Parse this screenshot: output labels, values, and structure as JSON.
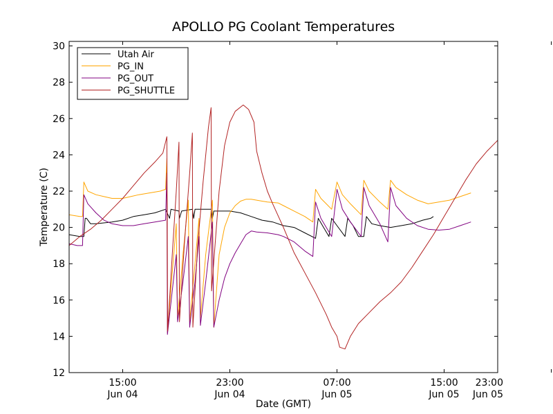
{
  "chart_data": {
    "type": "line",
    "title": "APOLLO PG Coolant Temperatures",
    "xlabel": "Date (GMT)",
    "ylabel": "Temperature (C)",
    "xlim_hours": [
      8.0,
      24.0
    ],
    "ylim": [
      12,
      30.25
    ],
    "grid": false,
    "legend_position": "upper-left",
    "y_ticks": [
      12,
      14,
      16,
      18,
      20,
      22,
      24,
      26,
      28,
      30
    ],
    "x_ticks": [
      {
        "hours": 10.0,
        "time": "15:00",
        "date": "Jun 04"
      },
      {
        "hours": 14.0,
        "time": "23:00",
        "date": "Jun 04"
      },
      {
        "hours": 18.0,
        "time": "07:00",
        "date": "Jun 05"
      },
      {
        "hours": 22.0,
        "time": "15:00",
        "date": "Jun 05"
      },
      {
        "hours": 26.0,
        "time": "23:00",
        "date": "Jun 05"
      }
    ],
    "series": [
      {
        "name": "Utah Air",
        "color": "#000000",
        "points": [
          [
            8.0,
            19.6
          ],
          [
            8.4,
            19.5
          ],
          [
            8.55,
            19.5
          ],
          [
            8.6,
            20.5
          ],
          [
            8.65,
            20.5
          ],
          [
            8.8,
            20.2
          ],
          [
            9.0,
            20.2
          ],
          [
            9.6,
            20.3
          ],
          [
            10.0,
            20.4
          ],
          [
            10.4,
            20.6
          ],
          [
            10.8,
            20.7
          ],
          [
            11.2,
            20.8
          ],
          [
            11.6,
            21.0
          ],
          [
            11.75,
            20.5
          ],
          [
            11.8,
            21.0
          ],
          [
            12.1,
            20.9
          ],
          [
            12.12,
            20.5
          ],
          [
            12.2,
            20.9
          ],
          [
            12.6,
            21.0
          ],
          [
            12.65,
            20.5
          ],
          [
            12.7,
            21.0
          ],
          [
            13.0,
            21.0
          ],
          [
            13.3,
            21.0
          ],
          [
            13.35,
            20.5
          ],
          [
            13.4,
            20.9
          ],
          [
            13.7,
            20.9
          ],
          [
            14.0,
            20.9
          ],
          [
            14.4,
            20.8
          ],
          [
            14.8,
            20.6
          ],
          [
            15.2,
            20.4
          ],
          [
            15.6,
            20.3
          ],
          [
            16.0,
            20.1
          ],
          [
            16.4,
            20.0
          ],
          [
            16.8,
            19.7
          ],
          [
            17.2,
            19.4
          ],
          [
            17.3,
            20.5
          ],
          [
            17.5,
            20.0
          ],
          [
            17.7,
            19.5
          ],
          [
            17.8,
            20.5
          ],
          [
            18.0,
            20.1
          ],
          [
            18.3,
            19.5
          ],
          [
            18.4,
            20.5
          ],
          [
            18.6,
            20.1
          ],
          [
            18.8,
            19.5
          ],
          [
            19.0,
            19.5
          ],
          [
            19.1,
            20.6
          ],
          [
            19.3,
            20.2
          ],
          [
            19.6,
            20.1
          ],
          [
            20.0,
            20.0
          ],
          [
            20.4,
            20.1
          ],
          [
            20.8,
            20.2
          ],
          [
            21.2,
            20.4
          ],
          [
            21.5,
            20.5
          ],
          [
            21.6,
            20.6
          ]
        ]
      },
      {
        "name": "PG_IN",
        "color": "#ffa500",
        "points": [
          [
            8.0,
            20.7
          ],
          [
            8.4,
            20.6
          ],
          [
            8.5,
            20.6
          ],
          [
            8.55,
            22.5
          ],
          [
            8.7,
            22.0
          ],
          [
            9.0,
            21.8
          ],
          [
            9.3,
            21.7
          ],
          [
            9.6,
            21.6
          ],
          [
            10.0,
            21.6
          ],
          [
            10.3,
            21.7
          ],
          [
            10.6,
            21.8
          ],
          [
            11.0,
            21.9
          ],
          [
            11.4,
            22.0
          ],
          [
            11.6,
            22.1
          ],
          [
            11.65,
            23.8
          ],
          [
            11.67,
            14.2
          ],
          [
            11.85,
            17.5
          ],
          [
            12.0,
            20.2
          ],
          [
            12.05,
            15.0
          ],
          [
            12.25,
            18.5
          ],
          [
            12.45,
            21.5
          ],
          [
            12.5,
            14.8
          ],
          [
            12.7,
            18.0
          ],
          [
            12.85,
            20.5
          ],
          [
            12.9,
            15.0
          ],
          [
            13.1,
            18.5
          ],
          [
            13.35,
            21.5
          ],
          [
            13.4,
            14.5
          ],
          [
            13.6,
            18.5
          ],
          [
            13.8,
            20.0
          ],
          [
            14.0,
            20.8
          ],
          [
            14.2,
            21.2
          ],
          [
            14.4,
            21.45
          ],
          [
            14.6,
            21.55
          ],
          [
            14.8,
            21.55
          ],
          [
            15.0,
            21.5
          ],
          [
            15.4,
            21.4
          ],
          [
            15.8,
            21.35
          ],
          [
            16.0,
            21.2
          ],
          [
            16.4,
            20.9
          ],
          [
            16.8,
            20.6
          ],
          [
            17.1,
            20.3
          ],
          [
            17.2,
            22.1
          ],
          [
            17.4,
            21.6
          ],
          [
            17.6,
            21.3
          ],
          [
            17.8,
            21.0
          ],
          [
            18.0,
            22.5
          ],
          [
            18.2,
            21.8
          ],
          [
            18.5,
            21.3
          ],
          [
            18.9,
            20.7
          ],
          [
            19.0,
            22.6
          ],
          [
            19.2,
            22.0
          ],
          [
            19.6,
            21.4
          ],
          [
            19.9,
            21.0
          ],
          [
            20.0,
            22.6
          ],
          [
            20.2,
            22.2
          ],
          [
            20.6,
            21.8
          ],
          [
            21.0,
            21.5
          ],
          [
            21.4,
            21.3
          ],
          [
            21.8,
            21.4
          ],
          [
            22.2,
            21.5
          ],
          [
            22.6,
            21.7
          ],
          [
            23.0,
            21.9
          ]
        ]
      },
      {
        "name": "PG_OUT",
        "color": "#800080",
        "points": [
          [
            8.0,
            19.1
          ],
          [
            8.3,
            19.0
          ],
          [
            8.5,
            19.0
          ],
          [
            8.55,
            21.8
          ],
          [
            8.7,
            21.3
          ],
          [
            9.0,
            20.8
          ],
          [
            9.3,
            20.4
          ],
          [
            9.6,
            20.2
          ],
          [
            10.0,
            20.1
          ],
          [
            10.4,
            20.1
          ],
          [
            10.8,
            20.2
          ],
          [
            11.2,
            20.3
          ],
          [
            11.6,
            20.4
          ],
          [
            11.65,
            23.0
          ],
          [
            11.67,
            14.1
          ],
          [
            11.85,
            16.5
          ],
          [
            12.0,
            18.5
          ],
          [
            12.05,
            14.8
          ],
          [
            12.25,
            17.0
          ],
          [
            12.45,
            19.5
          ],
          [
            12.5,
            14.5
          ],
          [
            12.7,
            17.0
          ],
          [
            12.85,
            19.5
          ],
          [
            12.9,
            14.6
          ],
          [
            13.1,
            17.0
          ],
          [
            13.35,
            20.3
          ],
          [
            13.4,
            14.5
          ],
          [
            13.6,
            16.0
          ],
          [
            13.8,
            17.2
          ],
          [
            14.0,
            18.0
          ],
          [
            14.2,
            18.6
          ],
          [
            14.4,
            19.1
          ],
          [
            14.6,
            19.6
          ],
          [
            14.8,
            19.8
          ],
          [
            15.0,
            19.75
          ],
          [
            15.4,
            19.7
          ],
          [
            15.8,
            19.6
          ],
          [
            16.0,
            19.5
          ],
          [
            16.4,
            19.2
          ],
          [
            16.8,
            18.7
          ],
          [
            17.1,
            18.4
          ],
          [
            17.2,
            21.4
          ],
          [
            17.4,
            20.5
          ],
          [
            17.6,
            20.0
          ],
          [
            17.8,
            19.5
          ],
          [
            18.0,
            22.1
          ],
          [
            18.2,
            21.0
          ],
          [
            18.5,
            20.3
          ],
          [
            18.9,
            19.5
          ],
          [
            19.0,
            22.2
          ],
          [
            19.2,
            21.2
          ],
          [
            19.6,
            20.2
          ],
          [
            19.9,
            19.2
          ],
          [
            20.0,
            22.2
          ],
          [
            20.2,
            21.2
          ],
          [
            20.6,
            20.5
          ],
          [
            21.0,
            20.1
          ],
          [
            21.4,
            19.9
          ],
          [
            21.8,
            19.85
          ],
          [
            22.2,
            19.9
          ],
          [
            22.6,
            20.1
          ],
          [
            23.0,
            20.3
          ]
        ]
      },
      {
        "name": "PG_SHUTTLE",
        "color": "#b22222",
        "points": [
          [
            8.0,
            19.0
          ],
          [
            8.4,
            19.5
          ],
          [
            8.8,
            19.9
          ],
          [
            9.2,
            20.4
          ],
          [
            9.6,
            21.0
          ],
          [
            10.0,
            21.6
          ],
          [
            10.4,
            22.3
          ],
          [
            10.8,
            23.0
          ],
          [
            11.2,
            23.6
          ],
          [
            11.5,
            24.1
          ],
          [
            11.65,
            25.0
          ],
          [
            11.68,
            14.3
          ],
          [
            11.85,
            18.5
          ],
          [
            12.0,
            22.0
          ],
          [
            12.1,
            24.7
          ],
          [
            12.12,
            14.8
          ],
          [
            12.3,
            19.0
          ],
          [
            12.5,
            23.0
          ],
          [
            12.6,
            25.2
          ],
          [
            12.62,
            14.5
          ],
          [
            12.8,
            19.0
          ],
          [
            13.0,
            22.5
          ],
          [
            13.2,
            25.5
          ],
          [
            13.3,
            26.6
          ],
          [
            13.32,
            16.5
          ],
          [
            13.6,
            22.0
          ],
          [
            13.8,
            24.5
          ],
          [
            14.0,
            25.8
          ],
          [
            14.2,
            26.4
          ],
          [
            14.5,
            26.75
          ],
          [
            14.7,
            26.5
          ],
          [
            14.9,
            25.8
          ],
          [
            15.0,
            24.2
          ],
          [
            15.2,
            23.0
          ],
          [
            15.4,
            22.0
          ],
          [
            15.6,
            21.3
          ],
          [
            16.0,
            20.0
          ],
          [
            16.4,
            18.6
          ],
          [
            16.8,
            17.5
          ],
          [
            17.2,
            16.4
          ],
          [
            17.6,
            15.2
          ],
          [
            17.8,
            14.5
          ],
          [
            18.0,
            14.0
          ],
          [
            18.1,
            13.4
          ],
          [
            18.3,
            13.3
          ],
          [
            18.5,
            14.0
          ],
          [
            18.8,
            14.7
          ],
          [
            19.2,
            15.3
          ],
          [
            19.6,
            15.9
          ],
          [
            20.0,
            16.4
          ],
          [
            20.4,
            17.0
          ],
          [
            20.8,
            17.8
          ],
          [
            21.2,
            18.7
          ],
          [
            21.6,
            19.6
          ],
          [
            22.0,
            20.6
          ],
          [
            22.4,
            21.6
          ],
          [
            22.8,
            22.6
          ],
          [
            23.2,
            23.5
          ],
          [
            23.6,
            24.2
          ],
          [
            23.8,
            24.5
          ],
          [
            24.0,
            24.8
          ]
        ]
      }
    ]
  }
}
